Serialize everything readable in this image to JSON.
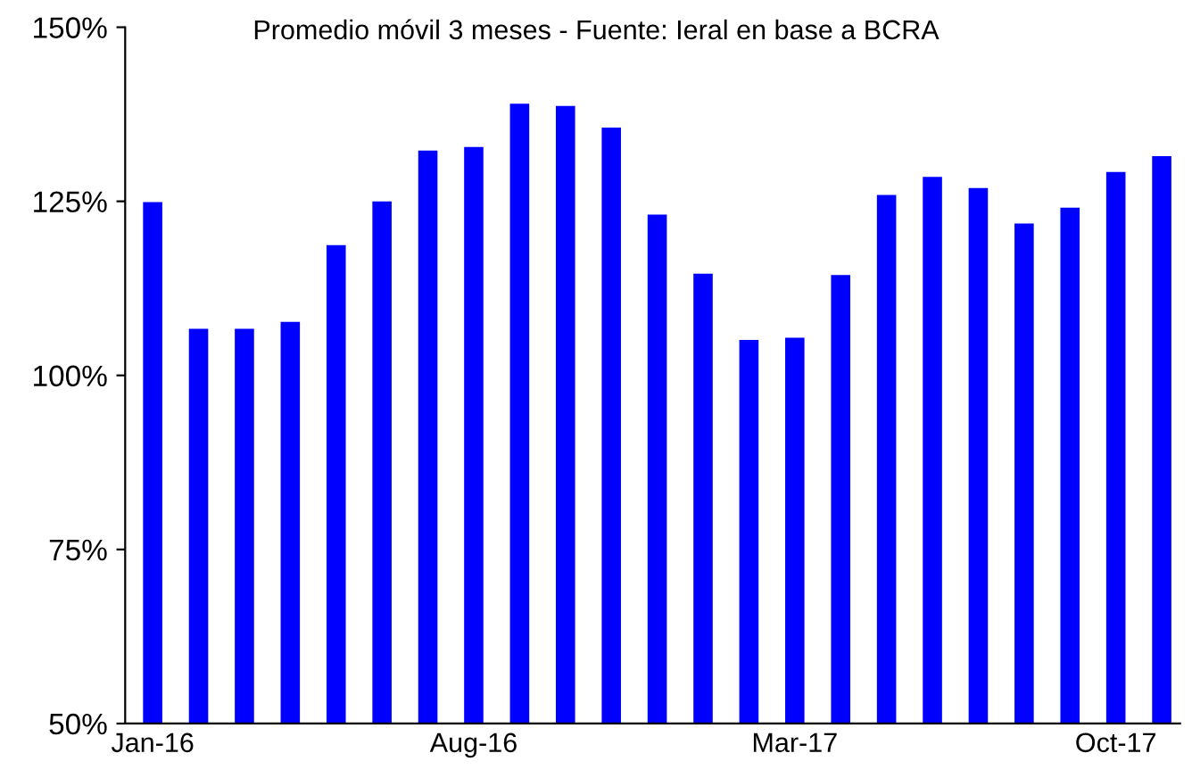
{
  "chart_data": {
    "type": "bar",
    "title": "Promedio móvil 3 meses - Fuente: Ieral en base a BCRA",
    "categories": [
      "Jan-16",
      null,
      null,
      null,
      null,
      null,
      null,
      "Aug-16",
      null,
      null,
      null,
      null,
      null,
      null,
      "Mar-17",
      null,
      null,
      null,
      null,
      null,
      null,
      "Oct-17",
      null
    ],
    "values": [
      124.9,
      106.7,
      106.7,
      107.7,
      118.7,
      125.0,
      132.3,
      132.8,
      139.0,
      138.7,
      135.6,
      123.1,
      114.6,
      105.1,
      105.4,
      114.4,
      125.9,
      128.5,
      126.9,
      121.8,
      124.1,
      129.2,
      131.5
    ],
    "color": "#0000ff",
    "ylim": [
      50,
      150
    ],
    "yticks": [
      {
        "value": 50,
        "label": "50%"
      },
      {
        "value": 75,
        "label": "75%"
      },
      {
        "value": 100,
        "label": "100%"
      },
      {
        "value": 125,
        "label": "125%"
      },
      {
        "value": 150,
        "label": "150%"
      }
    ],
    "grid": false,
    "legend": false
  }
}
